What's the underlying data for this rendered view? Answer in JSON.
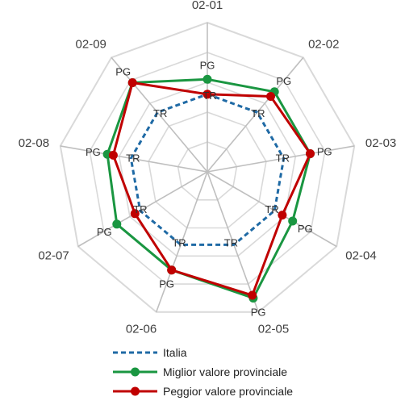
{
  "chart_data": {
    "type": "radar",
    "categories": [
      "02-01",
      "02-02",
      "02-03",
      "02-04",
      "02-05",
      "02-06",
      "02-07",
      "02-08",
      "02-09"
    ],
    "rlim": [
      0,
      5
    ],
    "grid": true,
    "legend_position": "bottom",
    "series": [
      {
        "name": "Italia",
        "style": "dashed",
        "color": "#1f6aa5",
        "values": [
          2.6,
          2.6,
          2.6,
          2.6,
          2.6,
          2.6,
          2.6,
          2.6,
          2.6
        ],
        "point_labels": [
          "TR",
          "TR",
          "TR",
          "TR",
          "TR",
          "TR",
          "TR",
          "TR",
          "TR"
        ]
      },
      {
        "name": "Miglior valore provinciale",
        "style": "solid",
        "color": "#1a9641",
        "values": [
          3.1,
          3.5,
          3.5,
          3.3,
          4.5,
          3.5,
          3.5,
          3.4,
          3.9
        ],
        "point_labels": [
          "PG",
          "PG",
          "PG",
          "PG",
          "PG",
          "PG",
          "PG",
          "PG",
          "PG"
        ]
      },
      {
        "name": "Peggior valore provinciale",
        "style": "solid",
        "color": "#c00000",
        "values": [
          2.6,
          3.3,
          3.5,
          2.9,
          4.4,
          3.5,
          2.8,
          3.2,
          3.9
        ]
      }
    ]
  }
}
